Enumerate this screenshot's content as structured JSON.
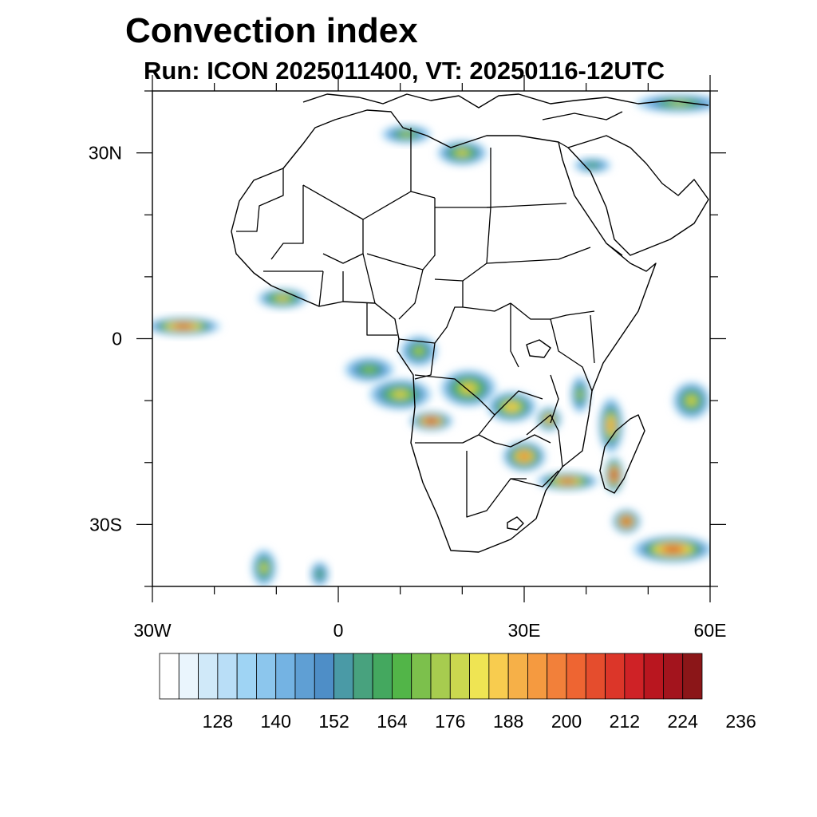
{
  "title": "Convection index",
  "subtitle": "Run: ICON 2025011400,  VT: 20250116-12UTC",
  "map": {
    "lon_range": [
      -30,
      60
    ],
    "lat_range": [
      -40,
      40
    ],
    "lat_ticks": [
      {
        "value": 30,
        "label": "30N"
      },
      {
        "value": 0,
        "label": "0"
      },
      {
        "value": -30,
        "label": "30S"
      }
    ],
    "lon_ticks": [
      {
        "value": -30,
        "label": "30W"
      },
      {
        "value": 0,
        "label": "0"
      },
      {
        "value": 30,
        "label": "30E"
      },
      {
        "value": 60,
        "label": "60E"
      }
    ],
    "minor_step": 10
  },
  "colorbar": {
    "label_values": [
      "128",
      "140",
      "152",
      "164",
      "176",
      "188",
      "200",
      "212",
      "224",
      "236"
    ],
    "colors": [
      "#ffffff",
      "#eaf5fd",
      "#d0e9f9",
      "#b9def7",
      "#9fd4f4",
      "#8cc6ed",
      "#74b3e3",
      "#5f9fd4",
      "#4e8ec7",
      "#4a9aa6",
      "#48a27e",
      "#44a85f",
      "#52b548",
      "#7cc04c",
      "#a7cc4f",
      "#cbd84f",
      "#efe453",
      "#f8cc4f",
      "#f6b048",
      "#f59a40",
      "#f2803a",
      "#ee6532",
      "#e54d2d",
      "#dc3629",
      "#cf2226",
      "#b9161f",
      "#a3141d",
      "#8b1618"
    ]
  },
  "regions": [
    {
      "name": "equatorial-atlantic",
      "lon": -25,
      "lat": 2,
      "rx": 6,
      "ry": 1.5,
      "peak": 0.85
    },
    {
      "name": "guinea-coast",
      "lon": -9,
      "lat": 6.5,
      "rx": 4,
      "ry": 1.6,
      "peak": 0.6
    },
    {
      "name": "gulf-of-guinea-south",
      "lon": 5,
      "lat": -5,
      "rx": 4,
      "ry": 2,
      "peak": 0.4
    },
    {
      "name": "gabon-congo",
      "lon": 13,
      "lat": -2,
      "rx": 3,
      "ry": 2.5,
      "peak": 0.45
    },
    {
      "name": "angola-coast",
      "lon": 10,
      "lat": -9,
      "rx": 5,
      "ry": 2.5,
      "peak": 0.55
    },
    {
      "name": "angola-core",
      "lon": 15,
      "lat": -13.3,
      "rx": 3.5,
      "ry": 1.6,
      "peak": 0.95
    },
    {
      "name": "drc-south",
      "lon": 21,
      "lat": -8,
      "rx": 4.5,
      "ry": 3,
      "peak": 0.6
    },
    {
      "name": "zambia",
      "lon": 28,
      "lat": -11,
      "rx": 4,
      "ry": 2.5,
      "peak": 0.65
    },
    {
      "name": "malawi",
      "lon": 34,
      "lat": -13,
      "rx": 2,
      "ry": 2,
      "peak": 0.7
    },
    {
      "name": "zimbabwe",
      "lon": 30,
      "lat": -19,
      "rx": 3.5,
      "ry": 2.5,
      "peak": 0.75
    },
    {
      "name": "mozambique-channel",
      "lon": 37,
      "lat": -23,
      "rx": 5,
      "ry": 1.5,
      "peak": 0.8
    },
    {
      "name": "madagascar-south",
      "lon": 44.5,
      "lat": -22,
      "rx": 1.6,
      "ry": 3,
      "peak": 1.0
    },
    {
      "name": "madagascar-north",
      "lon": 44,
      "lat": -14,
      "rx": 2,
      "ry": 4.5,
      "peak": 0.7
    },
    {
      "name": "tanzania-coast",
      "lon": 39,
      "lat": -9,
      "rx": 1.5,
      "ry": 3,
      "peak": 0.45
    },
    {
      "name": "cyclone-core",
      "lon": 46.5,
      "lat": -29.5,
      "rx": 2.3,
      "ry": 2,
      "peak": 0.95
    },
    {
      "name": "cyclone-tail",
      "lon": 54,
      "lat": -34,
      "rx": 6.5,
      "ry": 2.2,
      "peak": 0.85
    },
    {
      "name": "indian-ocean-east",
      "lon": 57,
      "lat": -10,
      "rx": 3,
      "ry": 3,
      "peak": 0.55
    },
    {
      "name": "mediterranean-east",
      "lon": 20,
      "lat": 30,
      "rx": 4,
      "ry": 2,
      "peak": 0.55
    },
    {
      "name": "libya-coast",
      "lon": 11,
      "lat": 33,
      "rx": 4,
      "ry": 1.5,
      "peak": 0.45
    },
    {
      "name": "arabia-north",
      "lon": 55,
      "lat": 38,
      "rx": 7,
      "ry": 1.5,
      "peak": 0.45
    },
    {
      "name": "red-sea-north",
      "lon": 41,
      "lat": 28,
      "rx": 3,
      "ry": 1.2,
      "peak": 0.3
    },
    {
      "name": "south-atlantic",
      "lon": -12,
      "lat": -37,
      "rx": 2,
      "ry": 3,
      "peak": 0.5
    },
    {
      "name": "south-atlantic-east",
      "lon": -3,
      "lat": -38,
      "rx": 1.5,
      "ry": 2,
      "peak": 0.35
    }
  ]
}
